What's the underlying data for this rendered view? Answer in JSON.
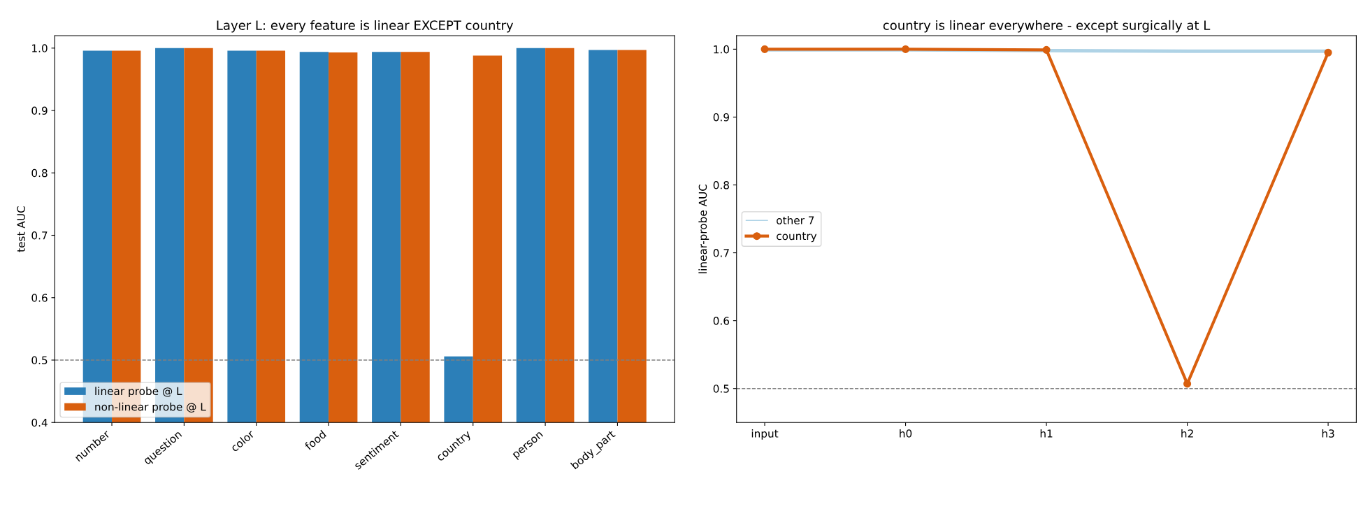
{
  "chart_data": [
    {
      "type": "bar",
      "title": "Layer L: every feature is linear EXCEPT country",
      "ylabel": "test AUC",
      "categories": [
        "number",
        "question",
        "color",
        "food",
        "sentiment",
        "country",
        "person",
        "body_part"
      ],
      "series": [
        {
          "name": "linear probe @ L",
          "color": "#2c7fb8",
          "values": [
            0.996,
            1.0,
            0.996,
            0.994,
            0.994,
            0.506,
            1.0,
            0.997
          ]
        },
        {
          "name": "non-linear probe @ L",
          "color": "#d95f0e",
          "values": [
            0.996,
            1.0,
            0.996,
            0.993,
            0.994,
            0.988,
            1.0,
            0.997
          ]
        }
      ],
      "ylim": [
        0.4,
        1.02
      ],
      "yticks": [
        {
          "value": 0.4,
          "label": "0.4"
        },
        {
          "value": 0.5,
          "label": "0.5"
        },
        {
          "value": 0.6,
          "label": "0.6"
        },
        {
          "value": 0.7,
          "label": "0.7"
        },
        {
          "value": 0.8,
          "label": "0.8"
        },
        {
          "value": 0.9,
          "label": "0.9"
        },
        {
          "value": 1.0,
          "label": "1.0"
        }
      ],
      "ref_lines": [
        {
          "axis": "y",
          "value": 0.5,
          "color": "#808080",
          "line_style": "dashed"
        }
      ],
      "legend": "bottom left",
      "grid": false
    },
    {
      "type": "line",
      "title": "country is linear everywhere - except surgically at L",
      "ylabel": "linear-probe AUC",
      "categories": [
        "input",
        "h0",
        "h1",
        "h2",
        "h3"
      ],
      "series": [
        {
          "name": "other 7",
          "color": "#a6cee3",
          "values": [
            0.999,
            0.999,
            0.998,
            0.997,
            0.997
          ],
          "marker": "none"
        },
        {
          "name": "country",
          "color": "#d95f0e",
          "values": [
            1.0,
            1.0,
            0.999,
            0.507,
            0.995
          ],
          "marker": "circle"
        }
      ],
      "ylim": [
        0.45,
        1.02
      ],
      "yticks": [
        {
          "value": 0.5,
          "label": "0.5"
        },
        {
          "value": 0.6,
          "label": "0.6"
        },
        {
          "value": 0.7,
          "label": "0.7"
        },
        {
          "value": 0.8,
          "label": "0.8"
        },
        {
          "value": 0.9,
          "label": "0.9"
        },
        {
          "value": 1.0,
          "label": "1.0"
        }
      ],
      "ref_lines": [
        {
          "axis": "y",
          "value": 0.5,
          "color": "#808080",
          "line_style": "dashed"
        }
      ],
      "legend": "center left",
      "grid": false
    }
  ]
}
